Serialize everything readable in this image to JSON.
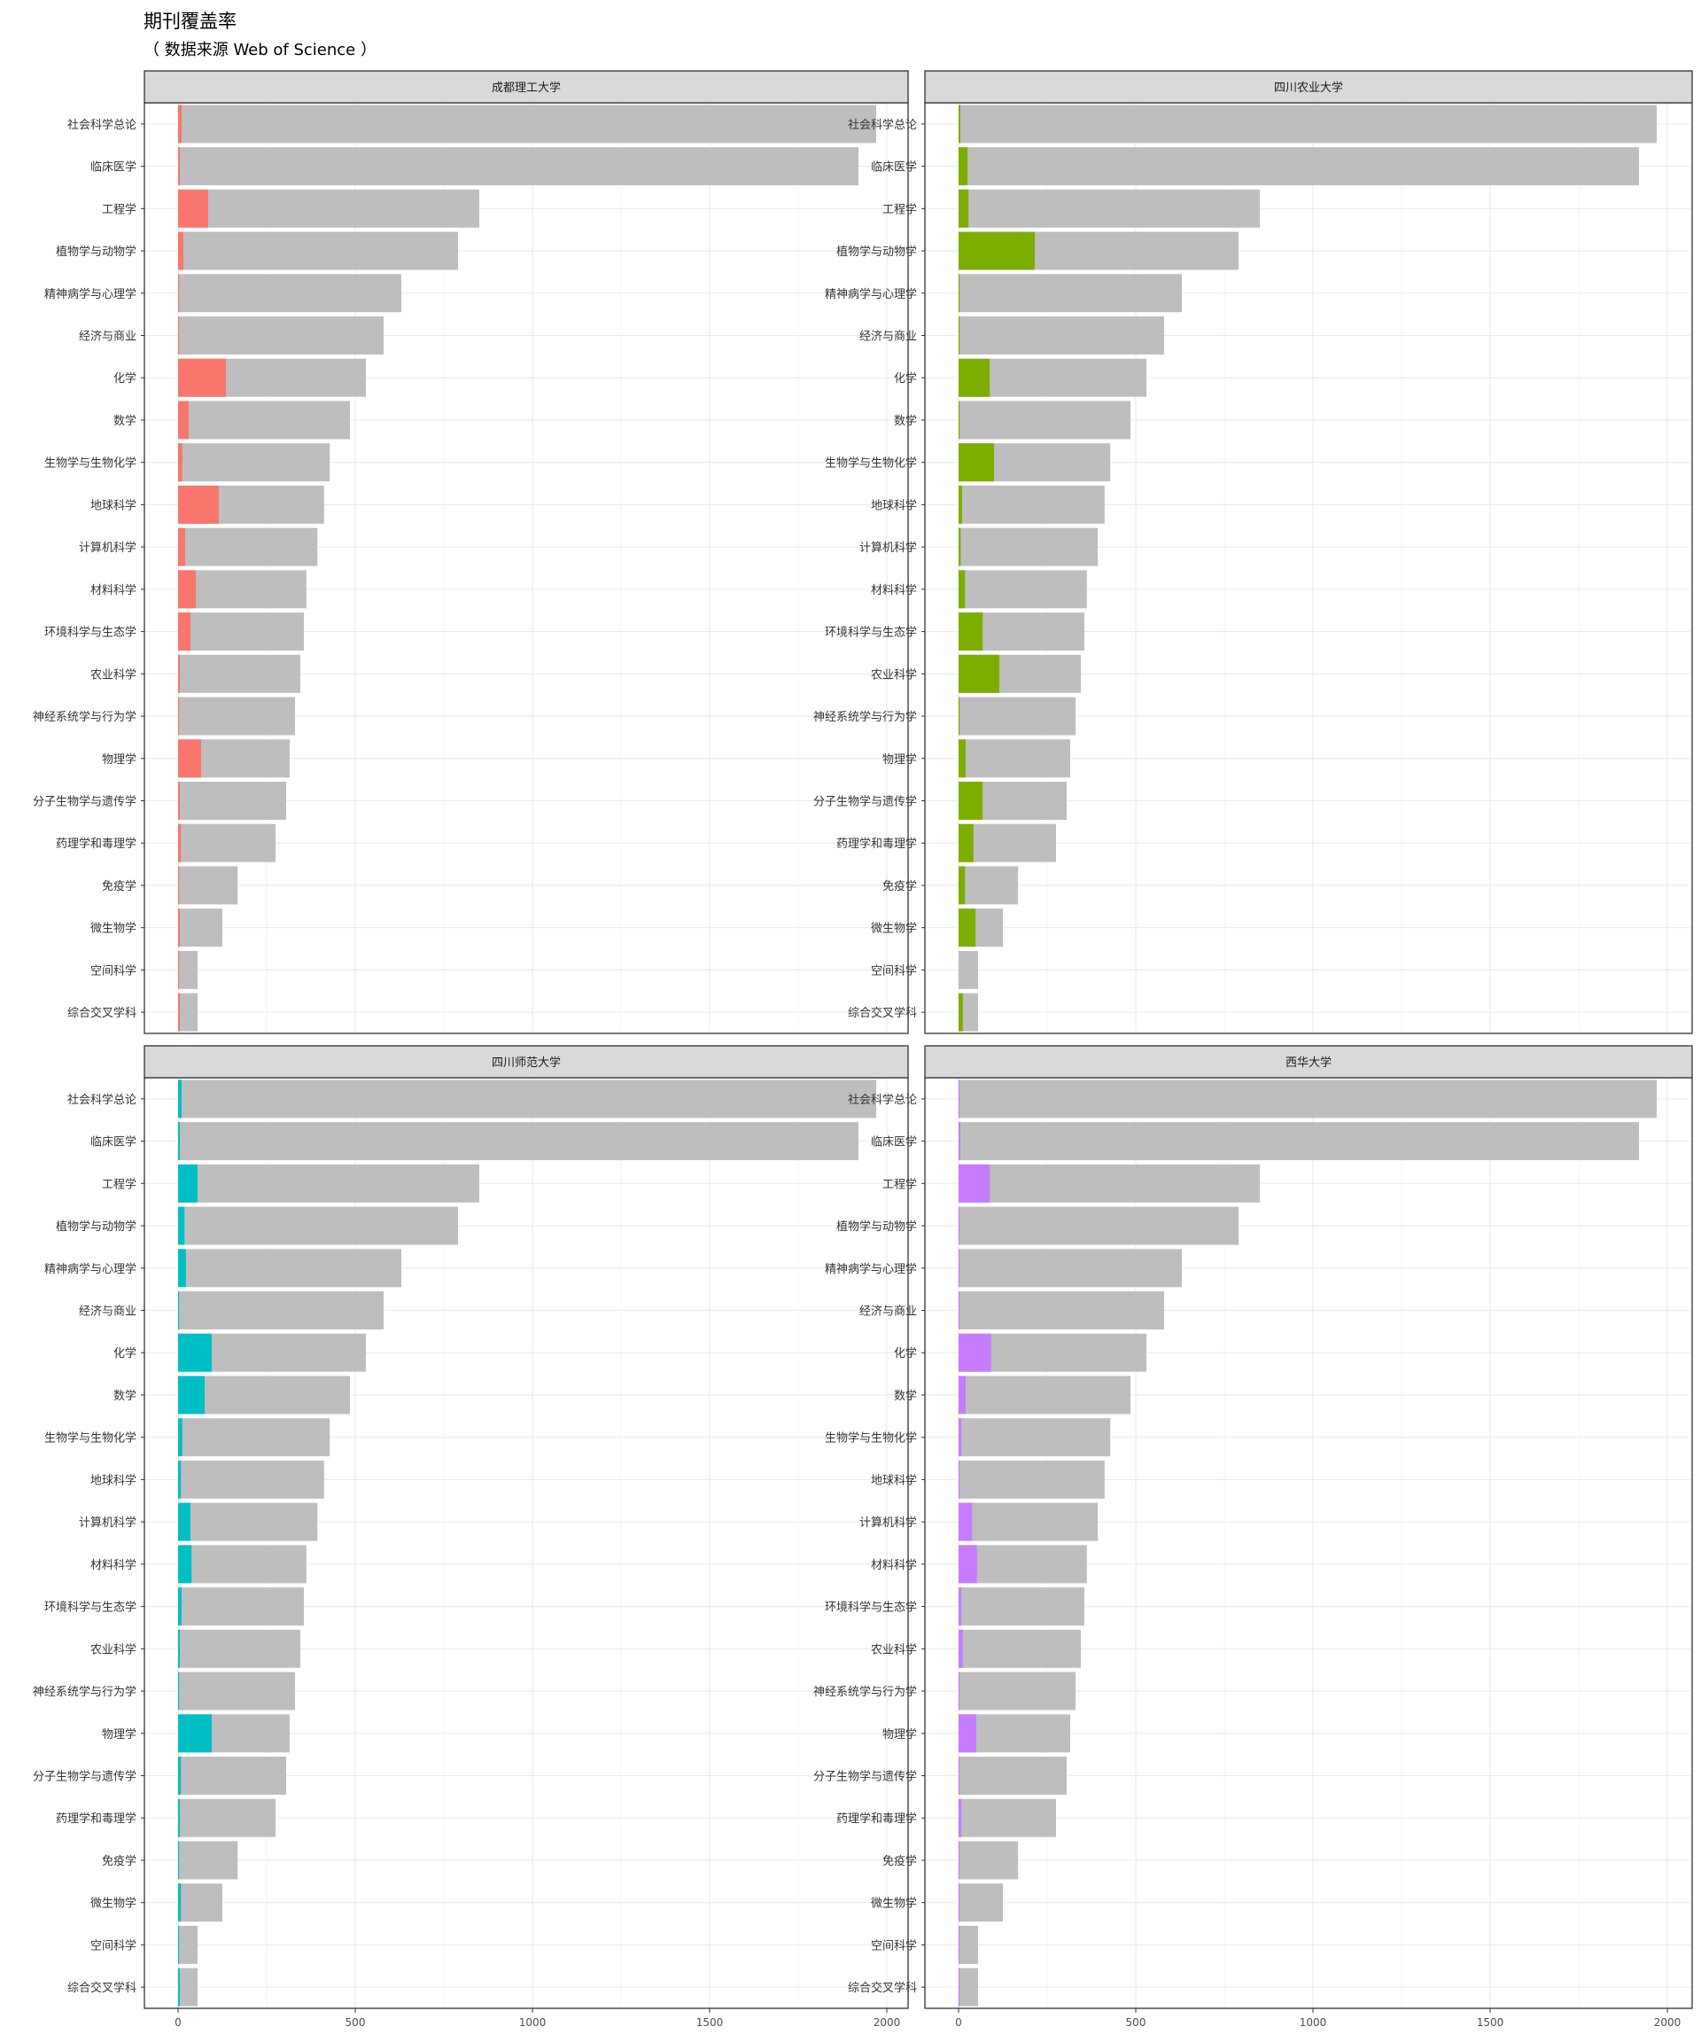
{
  "title": "期刊覆盖率",
  "subtitle": "（ 数据来源 Web of Science ）",
  "chart_data": {
    "type": "bar",
    "orientation": "horizontal",
    "layout": "facet-grid 2x2",
    "title": "期刊覆盖率",
    "subtitle": "（ 数据来源 Web of Science ）",
    "xlabel": "",
    "ylabel": "",
    "xlim": [
      0,
      2000
    ],
    "xticks": [
      0,
      500,
      1000,
      1500,
      2000
    ],
    "grid": true,
    "categories": [
      "社会科学总论",
      "临床医学",
      "工程学",
      "植物学与动物学",
      "精神病学与心理学",
      "经济与商业",
      "化学",
      "数学",
      "生物学与生物化学",
      "地球科学",
      "计算机科学",
      "材料科学",
      "环境科学与生态学",
      "农业科学",
      "神经系统学与行为学",
      "物理学",
      "分子生物学与遗传学",
      "药理学和毒理学",
      "免疫学",
      "微生物学",
      "空间科学",
      "综合交叉学科"
    ],
    "totals": [
      1970,
      1920,
      850,
      790,
      630,
      580,
      530,
      485,
      428,
      412,
      393,
      362,
      355,
      345,
      330,
      315,
      305,
      275,
      168,
      125,
      55,
      55
    ],
    "total_color": "#bebebe",
    "facets": [
      {
        "name": "成都理工大学",
        "color": "#f8766d",
        "values": [
          10,
          5,
          85,
          15,
          2,
          3,
          135,
          30,
          12,
          115,
          20,
          50,
          35,
          5,
          1,
          65,
          5,
          8,
          2,
          5,
          3,
          5
        ]
      },
      {
        "name": "四川农业大学",
        "color": "#7cae00",
        "values": [
          5,
          25,
          28,
          215,
          1,
          2,
          88,
          2,
          100,
          10,
          6,
          18,
          68,
          115,
          1,
          20,
          68,
          42,
          18,
          48,
          0,
          12
        ]
      },
      {
        "name": "四川师范大学",
        "color": "#00bfc4",
        "values": [
          10,
          5,
          55,
          18,
          22,
          2,
          95,
          75,
          12,
          8,
          35,
          38,
          10,
          5,
          2,
          95,
          8,
          5,
          1,
          8,
          1,
          5
        ]
      },
      {
        "name": "西华大学",
        "color": "#c77cff",
        "values": [
          2,
          5,
          88,
          2,
          1,
          1,
          92,
          20,
          8,
          1,
          38,
          52,
          8,
          12,
          1,
          50,
          2,
          8,
          1,
          3,
          1,
          3
        ]
      }
    ]
  }
}
